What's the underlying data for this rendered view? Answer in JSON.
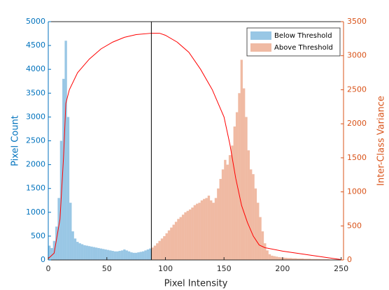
{
  "chart_data": {
    "type": "histogram",
    "xlabel": "Pixel Intensity",
    "ylabel": "Pixel Count",
    "y2label": "Inter-Class Variance",
    "xlim": [
      0,
      252
    ],
    "xticks": [
      0,
      50,
      100,
      150,
      200,
      250
    ],
    "ylim": [
      0,
      5000
    ],
    "yticks": [
      0,
      500,
      1000,
      1500,
      2000,
      2500,
      3000,
      3500,
      4000,
      4500,
      5000
    ],
    "y2lim": [
      0,
      3500
    ],
    "y2ticks": [
      0,
      500,
      1000,
      1500,
      2000,
      2500,
      3000,
      3500
    ],
    "ycolor": "#0072bd",
    "y2color": "#d95319",
    "legend": "northeast",
    "threshold": 88,
    "threshold_color": "#000000",
    "series": [
      {
        "name": "Below Threshold",
        "color": "#0072bd",
        "bins": [
          0,
          2,
          4,
          6,
          8,
          10,
          12,
          14,
          16,
          18,
          20,
          22,
          24,
          26,
          28,
          30,
          32,
          34,
          36,
          38,
          40,
          42,
          44,
          46,
          48,
          50,
          52,
          54,
          56,
          58,
          60,
          62,
          64,
          66,
          68,
          70,
          72,
          74,
          76,
          78,
          80,
          82,
          84,
          86,
          88
        ],
        "values": [
          300,
          250,
          400,
          700,
          1300,
          2500,
          3800,
          4600,
          3000,
          1200,
          600,
          450,
          380,
          350,
          330,
          310,
          300,
          290,
          280,
          270,
          260,
          250,
          240,
          230,
          220,
          210,
          200,
          190,
          180,
          180,
          190,
          200,
          220,
          200,
          180,
          160,
          150,
          150,
          160,
          170,
          180,
          200,
          220,
          240
        ]
      },
      {
        "name": "Above Threshold",
        "color": "#d95319",
        "bins": [
          88,
          90,
          92,
          94,
          96,
          98,
          100,
          102,
          104,
          106,
          108,
          110,
          112,
          114,
          116,
          118,
          120,
          122,
          124,
          126,
          128,
          130,
          132,
          134,
          136,
          138,
          140,
          142,
          144,
          146,
          148,
          150,
          152,
          154,
          156,
          158,
          160,
          162,
          164,
          166,
          168,
          170,
          172,
          174,
          176,
          178,
          180,
          182,
          184,
          186,
          188,
          190,
          192,
          194,
          196,
          198,
          200,
          202,
          204,
          206,
          208,
          210,
          212,
          214,
          216,
          218,
          220,
          222,
          224,
          226,
          228,
          230,
          232,
          234,
          236,
          238,
          240,
          242,
          244,
          246,
          248,
          250,
          252,
          254,
          256
        ],
        "values": [
          260,
          300,
          350,
          400,
          450,
          500,
          560,
          620,
          680,
          740,
          800,
          860,
          900,
          950,
          1000,
          1030,
          1060,
          1100,
          1150,
          1180,
          1200,
          1250,
          1280,
          1300,
          1350,
          1250,
          1200,
          1300,
          1500,
          1700,
          1900,
          2100,
          2000,
          2200,
          2400,
          2800,
          3100,
          3500,
          4200,
          3600,
          3000,
          2300,
          1900,
          1800,
          1500,
          1200,
          900,
          600,
          350,
          200,
          120,
          90,
          80,
          70,
          60,
          55,
          50,
          45,
          40,
          40,
          35,
          35,
          30,
          30,
          30,
          25,
          25,
          25,
          20,
          20,
          20,
          20,
          15,
          15,
          15,
          15,
          10,
          10,
          10,
          10,
          10,
          10,
          5,
          5
        ]
      }
    ],
    "variance": {
      "color": "#ff0000",
      "axis": "y2",
      "x": [
        0,
        5,
        10,
        13,
        15,
        18,
        25,
        35,
        45,
        55,
        65,
        75,
        88,
        95,
        100,
        110,
        120,
        130,
        140,
        150,
        155,
        160,
        165,
        170,
        175,
        180,
        185,
        200,
        220,
        240,
        250
      ],
      "values": [
        20,
        100,
        600,
        1500,
        2300,
        2500,
        2750,
        2950,
        3100,
        3200,
        3270,
        3310,
        3330,
        3330,
        3300,
        3200,
        3050,
        2800,
        2500,
        2100,
        1700,
        1200,
        800,
        550,
        350,
        220,
        180,
        130,
        80,
        30,
        5
      ]
    }
  }
}
